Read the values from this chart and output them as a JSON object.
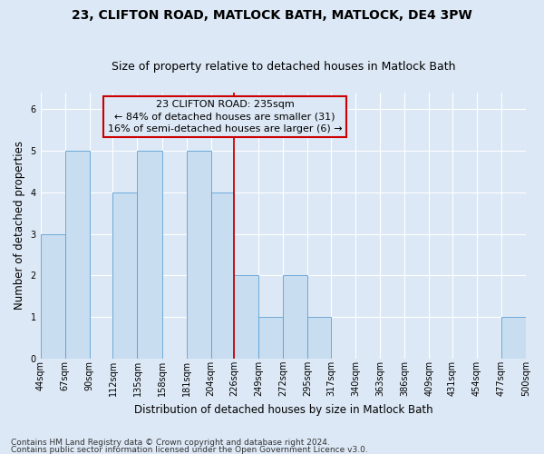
{
  "title1": "23, CLIFTON ROAD, MATLOCK BATH, MATLOCK, DE4 3PW",
  "title2": "Size of property relative to detached houses in Matlock Bath",
  "xlabel": "Distribution of detached houses by size in Matlock Bath",
  "ylabel": "Number of detached properties",
  "footer1": "Contains HM Land Registry data © Crown copyright and database right 2024.",
  "footer2": "Contains public sector information licensed under the Open Government Licence v3.0.",
  "annotation_title": "23 CLIFTON ROAD: 235sqm",
  "annotation_line1": "← 84% of detached houses are smaller (31)",
  "annotation_line2": "16% of semi-detached houses are larger (6) →",
  "bar_color": "#c8ddf0",
  "bar_edge_color": "#5a9fd4",
  "ref_line_color": "#cc0000",
  "annotation_box_edge_color": "#cc0000",
  "bg_color": "#dce8f5",
  "bins": [
    44,
    67,
    90,
    112,
    135,
    158,
    181,
    204,
    226,
    249,
    272,
    295,
    317,
    340,
    363,
    386,
    409,
    431,
    454,
    477,
    500
  ],
  "counts": [
    3,
    5,
    0,
    4,
    5,
    0,
    5,
    4,
    2,
    1,
    2,
    1,
    0,
    0,
    0,
    0,
    0,
    0,
    0,
    1
  ],
  "ref_line_x": 226,
  "ylim": [
    0,
    6.4
  ],
  "yticks": [
    0,
    1,
    2,
    3,
    4,
    5,
    6
  ],
  "grid_color": "#ffffff",
  "title_fontsize": 10,
  "subtitle_fontsize": 9,
  "axis_label_fontsize": 8.5,
  "tick_fontsize": 7,
  "annotation_fontsize": 8,
  "footer_fontsize": 6.5
}
